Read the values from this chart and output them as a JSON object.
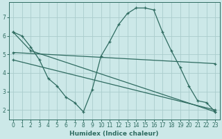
{
  "xlabel": "Humidex (Indice chaleur)",
  "bg_color": "#cce8e8",
  "line_color": "#2e6b60",
  "grid_color": "#aacccc",
  "xlim": [
    -0.5,
    23.5
  ],
  "ylim": [
    1.5,
    7.8
  ],
  "yticks": [
    2,
    3,
    4,
    5,
    6,
    7
  ],
  "xticks": [
    0,
    1,
    2,
    3,
    4,
    5,
    6,
    7,
    8,
    9,
    10,
    11,
    12,
    13,
    14,
    15,
    16,
    17,
    18,
    19,
    20,
    21,
    22,
    23
  ],
  "lines": [
    {
      "x": [
        0,
        1,
        2,
        3,
        4,
        5,
        6,
        7,
        8,
        9,
        10,
        11,
        12,
        13,
        14,
        15,
        16,
        17,
        18,
        19,
        20,
        21,
        22,
        23
      ],
      "y": [
        6.2,
        6.0,
        5.4,
        4.7,
        3.7,
        3.3,
        2.7,
        2.4,
        1.9,
        3.1,
        4.9,
        5.7,
        6.6,
        7.2,
        7.5,
        7.5,
        7.4,
        6.2,
        5.2,
        4.3,
        3.3,
        2.5,
        2.4,
        1.9
      ]
    },
    {
      "x": [
        0,
        2,
        23
      ],
      "y": [
        6.2,
        5.2,
        1.9
      ]
    },
    {
      "x": [
        0,
        23
      ],
      "y": [
        5.1,
        4.5
      ]
    },
    {
      "x": [
        0,
        23
      ],
      "y": [
        4.7,
        2.0
      ]
    }
  ]
}
